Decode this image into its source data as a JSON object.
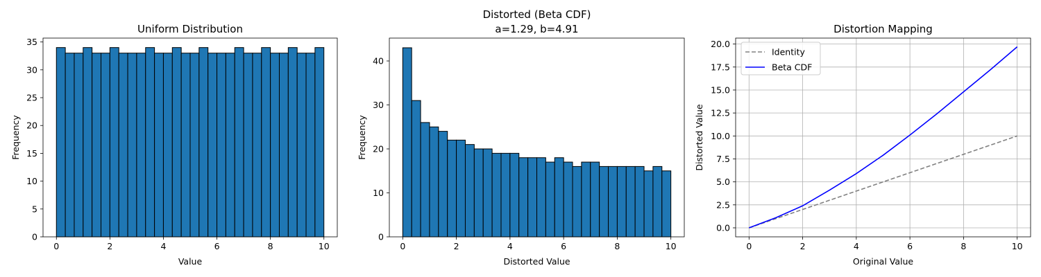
{
  "chart_data": [
    {
      "type": "bar",
      "title": "Uniform Distribution",
      "xlabel": "Value",
      "ylabel": "Frequency",
      "xlim": [
        -0.5,
        10.5
      ],
      "ylim": [
        0,
        35.7
      ],
      "xticks": [
        0,
        2,
        4,
        6,
        8,
        10
      ],
      "xtick_labels": [
        "0",
        "2",
        "4",
        "6",
        "8",
        "10"
      ],
      "yticks": [
        0,
        5,
        10,
        15,
        20,
        25,
        30,
        35
      ],
      "ytick_labels": [
        "0",
        "5",
        "10",
        "15",
        "20",
        "25",
        "30",
        "35"
      ],
      "bin_edges_range": [
        0,
        10
      ],
      "bins": 30,
      "values": [
        34,
        33,
        33,
        34,
        33,
        33,
        34,
        33,
        33,
        33,
        34,
        33,
        33,
        34,
        33,
        33,
        34,
        33,
        33,
        33,
        34,
        33,
        33,
        34,
        33,
        33,
        34,
        33,
        33,
        34
      ],
      "bar_color": "#1f77b4",
      "edge_color": "#000000",
      "grid": false
    },
    {
      "type": "bar",
      "title_lines": [
        "Distorted (Beta CDF)",
        "a=1.29, b=4.91"
      ],
      "xlabel": "Distorted Value",
      "ylabel": "Frequency",
      "xlim": [
        -0.5,
        10.5
      ],
      "ylim": [
        0,
        45.2
      ],
      "xticks": [
        0,
        2,
        4,
        6,
        8,
        10
      ],
      "xtick_labels": [
        "0",
        "2",
        "4",
        "6",
        "8",
        "10"
      ],
      "yticks": [
        0,
        10,
        20,
        30,
        40
      ],
      "ytick_labels": [
        "0",
        "10",
        "20",
        "30",
        "40"
      ],
      "bin_edges_range": [
        0,
        10
      ],
      "bins": 30,
      "values": [
        43,
        31,
        26,
        25,
        24,
        22,
        22,
        21,
        20,
        20,
        19,
        19,
        19,
        18,
        18,
        18,
        17,
        18,
        17,
        16,
        17,
        17,
        16,
        16,
        16,
        16,
        16,
        15,
        16,
        15
      ],
      "bar_color": "#1f77b4",
      "edge_color": "#000000",
      "grid": false
    },
    {
      "type": "line",
      "title": "Distortion Mapping",
      "xlabel": "Original Value",
      "ylabel": "Distorted Value",
      "xlim": [
        -0.5,
        10.5
      ],
      "ylim": [
        -0.98,
        20.65
      ],
      "xticks": [
        0,
        2,
        4,
        6,
        8,
        10
      ],
      "xtick_labels": [
        "0",
        "2",
        "4",
        "6",
        "8",
        "10"
      ],
      "yticks": [
        0,
        2.5,
        5,
        7.5,
        10,
        12.5,
        15,
        17.5,
        20
      ],
      "ytick_labels": [
        "0.0",
        "2.5",
        "5.0",
        "7.5",
        "10.0",
        "12.5",
        "15.0",
        "17.5",
        "20.0"
      ],
      "grid": true,
      "legend_position": "top-left",
      "series": [
        {
          "name": "Identity",
          "color": "#808080",
          "dashed": true,
          "x": [
            0,
            10
          ],
          "y": [
            0,
            10
          ]
        },
        {
          "name": "Beta CDF",
          "color": "#0000ff",
          "dashed": false,
          "x": [
            0,
            1,
            2,
            3,
            4,
            5,
            6,
            7,
            8,
            9,
            10
          ],
          "y": [
            0,
            1.1,
            2.4,
            4.1,
            5.9,
            7.9,
            10.1,
            12.4,
            14.8,
            17.2,
            19.7
          ]
        }
      ]
    }
  ]
}
